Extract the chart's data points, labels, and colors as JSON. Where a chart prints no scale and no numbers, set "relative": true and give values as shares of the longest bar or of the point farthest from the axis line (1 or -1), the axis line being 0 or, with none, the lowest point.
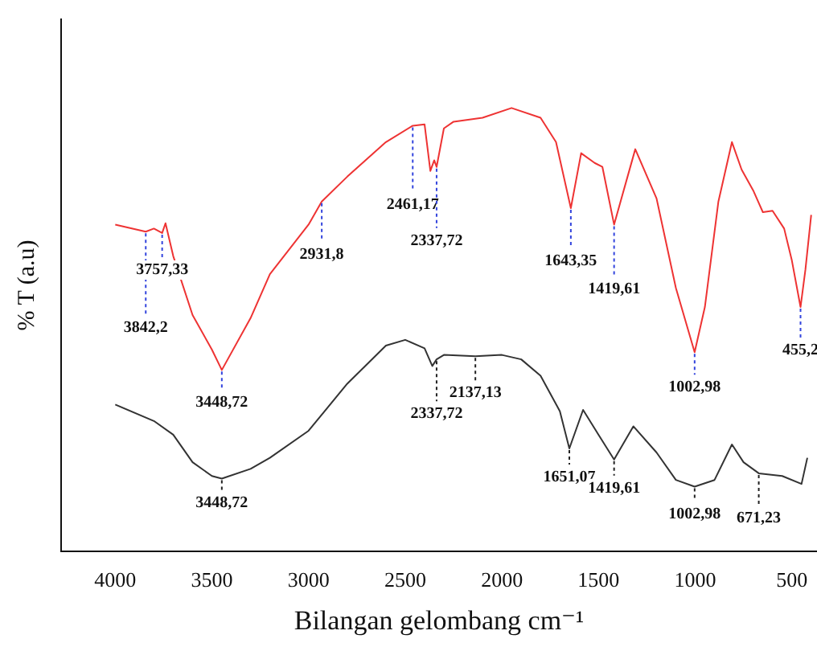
{
  "chart_data": {
    "type": "line",
    "relative": true,
    "xlabel": "Bilangan gelombang cm⁻¹",
    "ylabel": "% T (a.u)",
    "xlim": [
      4280,
      370
    ],
    "xticks": [
      4000,
      3500,
      3000,
      2500,
      2000,
      1500,
      1000,
      500
    ],
    "grid": false,
    "legend": false,
    "marker": "none",
    "line_style": "solid",
    "series": [
      {
        "color": "#ee3333",
        "x": [
          4000,
          3842.2,
          3800,
          3757.33,
          3740,
          3700,
          3600,
          3500,
          3448.72,
          3300,
          3200,
          3000,
          2931.8,
          2800,
          2600,
          2461.17,
          2400,
          2370,
          2350,
          2337.72,
          2300,
          2250,
          2100,
          1950,
          1800,
          1720,
          1643.35,
          1590,
          1520,
          1480,
          1419.61,
          1310,
          1200,
          1100,
          1002.98,
          950,
          880,
          810,
          760,
          700,
          650,
          600,
          540,
          500,
          455.2,
          430,
          400
        ],
        "values": [
          0.737,
          0.721,
          0.728,
          0.718,
          0.74,
          0.666,
          0.533,
          0.455,
          0.409,
          0.526,
          0.625,
          0.737,
          0.789,
          0.845,
          0.923,
          0.96,
          0.963,
          0.858,
          0.882,
          0.867,
          0.954,
          0.969,
          0.978,
          1,
          0.978,
          0.923,
          0.774,
          0.898,
          0.876,
          0.867,
          0.737,
          0.907,
          0.796,
          0.594,
          0.449,
          0.551,
          0.789,
          0.923,
          0.861,
          0.814,
          0.765,
          0.768,
          0.728,
          0.656,
          0.551,
          0.635,
          0.759
        ]
      },
      {
        "color": "#333333",
        "x": [
          4000,
          3800,
          3700,
          3600,
          3500,
          3448.72,
          3300,
          3200,
          3000,
          2800,
          2600,
          2500,
          2400,
          2360,
          2337.72,
          2300,
          2137.13,
          2000,
          1900,
          1800,
          1700,
          1651.07,
          1580,
          1500,
          1419.61,
          1320,
          1200,
          1100,
          1002.98,
          900,
          810,
          750,
          671.23,
          550,
          450,
          420
        ],
        "values": [
          0.331,
          0.294,
          0.263,
          0.201,
          0.17,
          0.164,
          0.186,
          0.211,
          0.272,
          0.378,
          0.464,
          0.477,
          0.458,
          0.418,
          0.433,
          0.443,
          0.44,
          0.443,
          0.433,
          0.396,
          0.316,
          0.232,
          0.319,
          0.263,
          0.207,
          0.282,
          0.223,
          0.161,
          0.146,
          0.161,
          0.241,
          0.201,
          0.176,
          0.17,
          0.152,
          0.211
        ]
      }
    ],
    "annotations": [
      {
        "text": "3842,2",
        "x": 3842.2,
        "y": 0.721
      },
      {
        "text": "3757,33",
        "x": 3757.33,
        "y": 0.718
      },
      {
        "text": "3448,72",
        "x": 3448.72,
        "y": 0.409
      },
      {
        "text": "2931,8",
        "x": 2931.8,
        "y": 0.789
      },
      {
        "text": "2461,17",
        "x": 2461.17,
        "y": 0.96
      },
      {
        "text": "2337,72",
        "x": 2337.72,
        "y": 0.867
      },
      {
        "text": "1643,35",
        "x": 1643.35,
        "y": 0.774
      },
      {
        "text": "1419,61",
        "x": 1419.61,
        "y": 0.737
      },
      {
        "text": "1002,98",
        "x": 1002.98,
        "y": 0.449
      },
      {
        "text": "455,2",
        "x": 455.2,
        "y": 0.551
      },
      {
        "text": "3448,72",
        "x": 3448.72,
        "y": 0.164
      },
      {
        "text": "2337,72",
        "x": 2337.72,
        "y": 0.433
      },
      {
        "text": "2137,13",
        "x": 2137.13,
        "y": 0.44
      },
      {
        "text": "1651,07",
        "x": 1651.07,
        "y": 0.232
      },
      {
        "text": "1419,61",
        "x": 1419.61,
        "y": 0.207
      },
      {
        "text": "1002,98",
        "x": 1002.98,
        "y": 0.146
      },
      {
        "text": "671,23",
        "x": 671.23,
        "y": 0.176
      }
    ]
  }
}
